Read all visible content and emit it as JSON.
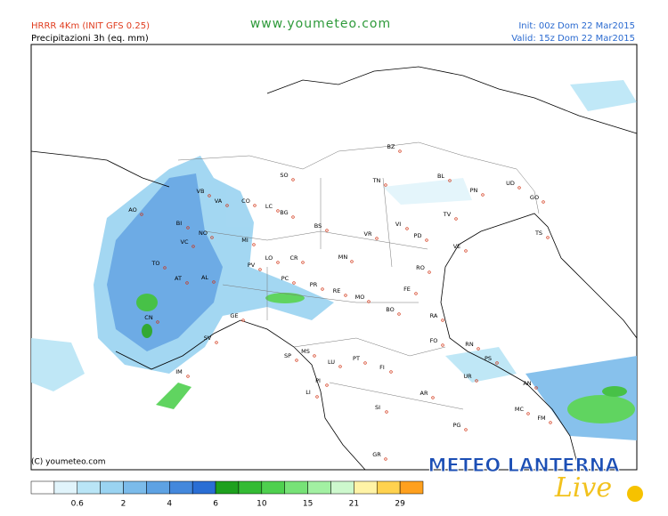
{
  "header": {
    "model": "HRRR 4Km (INIT GFS 0.25)",
    "field": "Precipitazioni 3h (eq. mm)",
    "site": "www.youmeteo.com",
    "init": "Init: 00z Dom 22 Mar2015",
    "valid": "Valid: 15z Dom 22 Mar2015"
  },
  "copyright": "(C) youmeteo.com",
  "logo": {
    "main": "METEO LANTERNA",
    "script": "Live"
  },
  "cities": [
    "AO",
    "BI",
    "VB",
    "VA",
    "CO",
    "LC",
    "SO",
    "BG",
    "NO",
    "VC",
    "MI",
    "TO",
    "AT",
    "AL",
    "PV",
    "LO",
    "CR",
    "PC",
    "BS",
    "MN",
    "VR",
    "TN",
    "BZ",
    "BL",
    "PN",
    "UD",
    "GO",
    "TS",
    "TV",
    "VI",
    "PD",
    "VE",
    "RO",
    "FE",
    "PR",
    "RE",
    "MO",
    "BO",
    "RA",
    "FO",
    "CN",
    "SV",
    "GE",
    "IM",
    "SP",
    "MS",
    "LU",
    "PT",
    "FI",
    "PI",
    "LI",
    "AR",
    "SI",
    "GR",
    "PG",
    "RN",
    "PS",
    "UR",
    "AN",
    "MC",
    "FM"
  ],
  "legend": {
    "colors": [
      "#ffffff",
      "#e1f4fb",
      "#b9e5f6",
      "#9ad3f1",
      "#7bbbea",
      "#5ea2e3",
      "#4488dc",
      "#2a6ed4",
      "#1ea01e",
      "#34bb34",
      "#4fd04f",
      "#77e277",
      "#a2f0a2",
      "#cdf8cd",
      "#fff3a6",
      "#ffd24f",
      "#ffa01e"
    ],
    "ticks": [
      0.6,
      2,
      4,
      6,
      10,
      15,
      21,
      29
    ]
  }
}
